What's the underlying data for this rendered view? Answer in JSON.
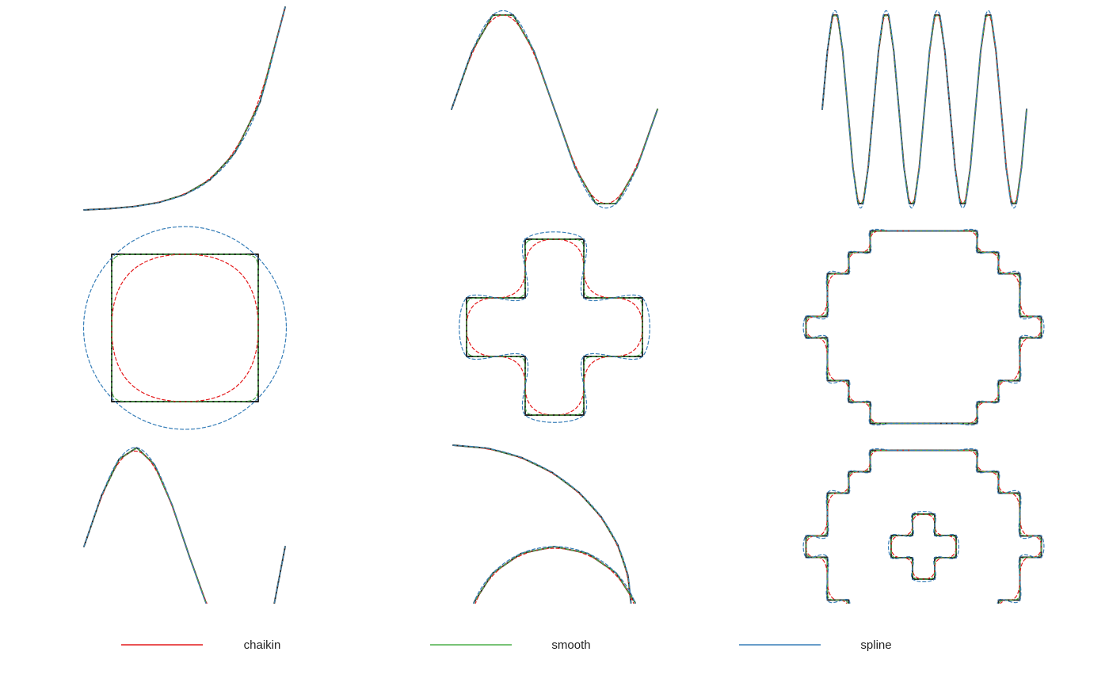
{
  "colors": {
    "original": "#222222",
    "chaikin": "#e41a1c",
    "smooth": "#4daf4a",
    "spline": "#377eb8"
  },
  "legend": [
    {
      "key": "chaikin",
      "label": "chaikin"
    },
    {
      "key": "smooth",
      "label": "smooth"
    },
    {
      "key": "spline",
      "label": "spline"
    }
  ],
  "panels": [
    {
      "id": "exponential-curve"
    },
    {
      "id": "sine-wave"
    },
    {
      "id": "zigzag"
    },
    {
      "id": "square"
    },
    {
      "id": "cross"
    },
    {
      "id": "stepped-circle"
    },
    {
      "id": "cubic-curve"
    },
    {
      "id": "nested-arcs"
    },
    {
      "id": "circle-with-cross"
    }
  ]
}
